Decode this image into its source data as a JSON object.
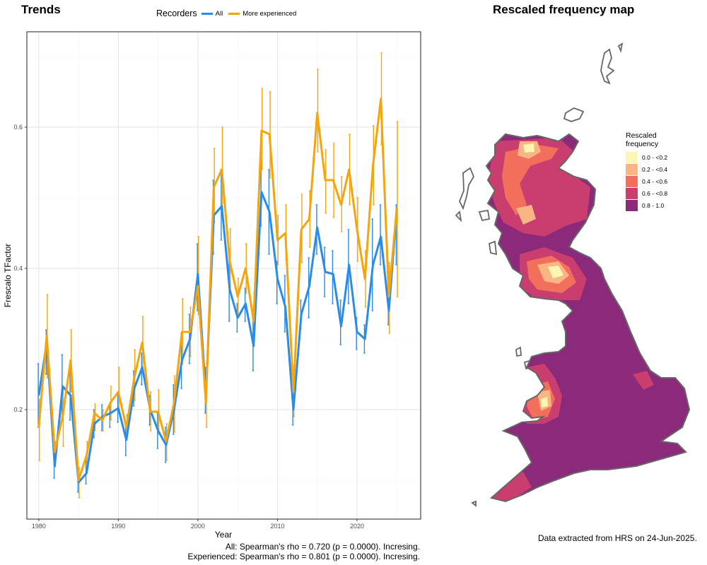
{
  "left_panel": {
    "title": "Trends"
  },
  "right_panel": {
    "title": "Rescaled frequency map"
  },
  "legend": {
    "title": "Recorders",
    "items": [
      {
        "label": "All",
        "color": "#2a8be8"
      },
      {
        "label": "More experienced",
        "color": "#f5a40d"
      }
    ]
  },
  "chart_data": {
    "type": "line",
    "xlabel": "Year",
    "ylabel": "Frescalo TFactor",
    "xlim": [
      1978.5,
      2028
    ],
    "ylim": [
      0.045,
      0.735
    ],
    "xticks": [
      1980,
      1990,
      2000,
      2010,
      2020
    ],
    "yticks": [
      0.2,
      0.4,
      0.6
    ],
    "grid": true,
    "legend_position": "top",
    "x": [
      1980,
      1981,
      1982,
      1983,
      1984,
      1985,
      1986,
      1987,
      1988,
      1989,
      1990,
      1991,
      1992,
      1993,
      1994,
      1995,
      1996,
      1997,
      1998,
      1999,
      2000,
      2001,
      2002,
      2003,
      2004,
      2005,
      2006,
      2007,
      2008,
      2009,
      2010,
      2011,
      2012,
      2013,
      2014,
      2015,
      2016,
      2017,
      2018,
      2019,
      2020,
      2021,
      2022,
      2023,
      2024,
      2025
    ],
    "series": [
      {
        "name": "All",
        "color": "#2a8be8",
        "values": [
          0.22,
          0.295,
          0.12,
          0.233,
          0.22,
          0.097,
          0.11,
          0.18,
          0.19,
          0.195,
          0.202,
          0.157,
          0.23,
          0.26,
          0.2,
          0.17,
          0.15,
          0.2,
          0.27,
          0.3,
          0.392,
          0.22,
          0.475,
          0.488,
          0.37,
          0.33,
          0.35,
          0.29,
          0.508,
          0.48,
          0.385,
          0.345,
          0.2,
          0.335,
          0.375,
          0.458,
          0.395,
          0.392,
          0.318,
          0.405,
          0.31,
          0.3,
          0.405,
          0.445,
          0.34,
          0.485
        ],
        "err_low": [
          0.175,
          0.25,
          0.103,
          0.19,
          0.185,
          0.083,
          0.095,
          0.16,
          0.17,
          0.175,
          0.182,
          0.135,
          0.205,
          0.235,
          0.178,
          0.145,
          0.125,
          0.165,
          0.23,
          0.265,
          0.34,
          0.195,
          0.42,
          0.44,
          0.325,
          0.31,
          0.325,
          0.255,
          0.46,
          0.42,
          0.35,
          0.31,
          0.178,
          0.315,
          0.33,
          0.42,
          0.36,
          0.35,
          0.292,
          0.35,
          0.285,
          0.28,
          0.34,
          0.405,
          0.32,
          0.405
        ],
        "err_high": [
          0.265,
          0.313,
          0.163,
          0.278,
          0.255,
          0.105,
          0.128,
          0.2,
          0.207,
          0.208,
          0.225,
          0.177,
          0.255,
          0.28,
          0.22,
          0.195,
          0.175,
          0.235,
          0.308,
          0.335,
          0.435,
          0.26,
          0.525,
          0.54,
          0.41,
          0.35,
          0.372,
          0.328,
          0.555,
          0.54,
          0.41,
          0.39,
          0.225,
          0.355,
          0.415,
          0.49,
          0.43,
          0.425,
          0.355,
          0.455,
          0.33,
          0.32,
          0.47,
          0.49,
          0.372,
          0.49
        ]
      },
      {
        "name": "More experienced",
        "color": "#f5a40d",
        "values": [
          0.175,
          0.305,
          0.14,
          0.19,
          0.27,
          0.1,
          0.135,
          0.195,
          0.185,
          0.21,
          0.225,
          0.175,
          0.245,
          0.295,
          0.197,
          0.197,
          0.155,
          0.21,
          0.31,
          0.31,
          0.375,
          0.21,
          0.515,
          0.54,
          0.41,
          0.36,
          0.4,
          0.325,
          0.595,
          0.59,
          0.44,
          0.45,
          0.225,
          0.455,
          0.47,
          0.62,
          0.525,
          0.525,
          0.49,
          0.54,
          0.455,
          0.385,
          0.545,
          0.64,
          0.36,
          0.485
        ],
        "err_low": [
          0.128,
          0.245,
          0.128,
          0.148,
          0.225,
          0.075,
          0.12,
          0.17,
          0.17,
          0.185,
          0.2,
          0.158,
          0.213,
          0.258,
          0.17,
          0.165,
          0.128,
          0.168,
          0.265,
          0.275,
          0.335,
          0.175,
          0.465,
          0.48,
          0.365,
          0.335,
          0.365,
          0.29,
          0.54,
          0.528,
          0.405,
          0.412,
          0.19,
          0.408,
          0.43,
          0.565,
          0.478,
          0.472,
          0.452,
          0.49,
          0.41,
          0.345,
          0.49,
          0.575,
          0.308,
          0.36
        ],
        "err_high": [
          0.215,
          0.363,
          0.155,
          0.233,
          0.313,
          0.118,
          0.155,
          0.208,
          0.2,
          0.233,
          0.26,
          0.193,
          0.285,
          0.332,
          0.225,
          0.228,
          0.18,
          0.248,
          0.357,
          0.345,
          0.445,
          0.248,
          0.57,
          0.6,
          0.456,
          0.386,
          0.435,
          0.365,
          0.655,
          0.65,
          0.475,
          0.49,
          0.262,
          0.505,
          0.51,
          0.682,
          0.568,
          0.577,
          0.53,
          0.59,
          0.5,
          0.425,
          0.602,
          0.705,
          0.408,
          0.608
        ]
      }
    ]
  },
  "stats_note": {
    "line1": "All: Spearman's rho = 0.720 (p = 0.0000). Incresing.",
    "line2": "Experienced: Spearman's rho = 0.801 (p = 0.0000). Incresing."
  },
  "map": {
    "legend_title_line1": "Rescaled",
    "legend_title_line2": "frequency",
    "classes": [
      {
        "label": "0.0 - <0.2",
        "color": "#fdf5b2"
      },
      {
        "label": "0.2 - <0.4",
        "color": "#f9b584"
      },
      {
        "label": "0.4 - <0.6",
        "color": "#f26f5c"
      },
      {
        "label": "0.6 - <0.8",
        "color": "#c93e6e"
      },
      {
        "label": "0.8 - 1.0",
        "color": "#8b2a7a"
      }
    ],
    "outline_color": "#666666"
  },
  "data_note": "Data extracted from HRS on 24-Jun-2025."
}
